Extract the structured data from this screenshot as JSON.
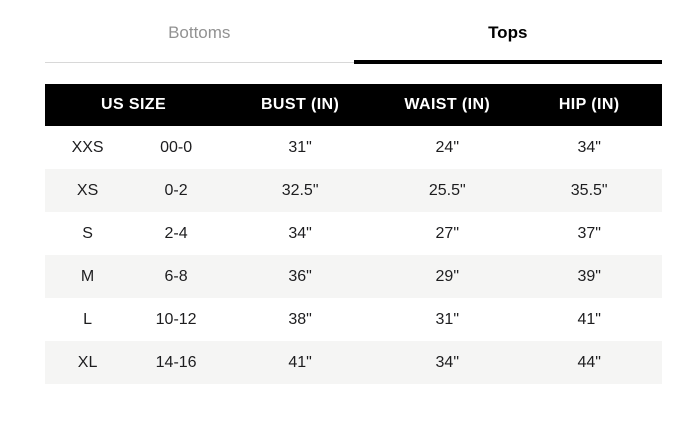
{
  "tabs": [
    {
      "label": "Bottoms",
      "active": false
    },
    {
      "label": "Tops",
      "active": true
    }
  ],
  "table": {
    "headers": [
      "US SIZE",
      "BUST (IN)",
      "WAIST (IN)",
      "HIP (IN)"
    ],
    "rows": [
      {
        "size": "XXS",
        "us_size": "00-0",
        "bust": "31\"",
        "waist": "24\"",
        "hip": "34\""
      },
      {
        "size": "XS",
        "us_size": "0-2",
        "bust": "32.5\"",
        "waist": "25.5\"",
        "hip": "35.5\""
      },
      {
        "size": "S",
        "us_size": "2-4",
        "bust": "34\"",
        "waist": "27\"",
        "hip": "37\""
      },
      {
        "size": "M",
        "us_size": "6-8",
        "bust": "36\"",
        "waist": "29\"",
        "hip": "39\""
      },
      {
        "size": "L",
        "us_size": "10-12",
        "bust": "38\"",
        "waist": "31\"",
        "hip": "41\""
      },
      {
        "size": "XL",
        "us_size": "14-16",
        "bust": "41\"",
        "waist": "34\"",
        "hip": "44\""
      }
    ]
  },
  "colors": {
    "header_bg": "#000000",
    "header_text": "#ffffff",
    "row_stripe": "#f5f5f4",
    "body_text": "#1d1d1f",
    "inactive_tab_text": "#929292",
    "active_tab_text": "#000000",
    "active_tab_underline": "#000000",
    "divider": "#d8d8d8"
  }
}
